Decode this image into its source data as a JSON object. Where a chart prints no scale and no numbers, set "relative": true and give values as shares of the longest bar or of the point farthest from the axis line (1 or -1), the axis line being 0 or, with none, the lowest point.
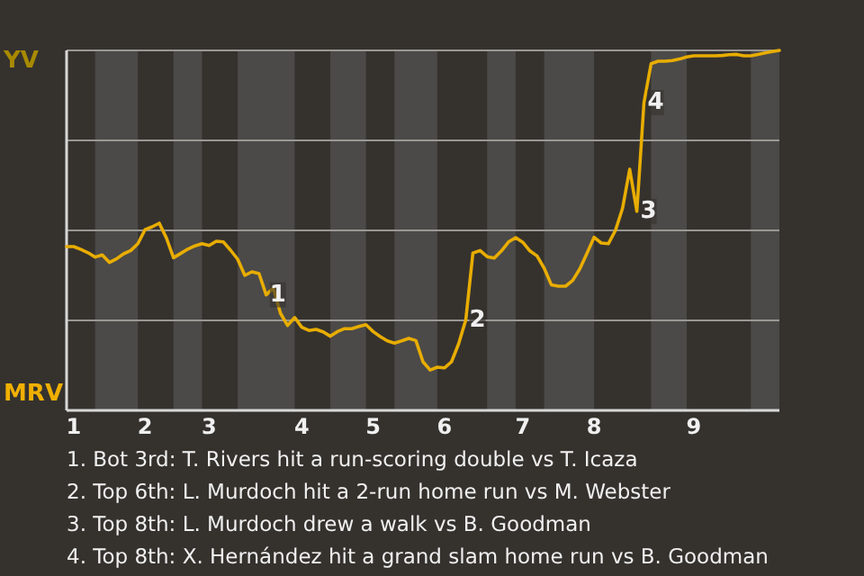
{
  "chart_data": {
    "type": "line",
    "categories": [
      null,
      "1",
      null,
      null,
      null,
      null,
      null,
      null,
      null,
      null,
      null,
      "2",
      null,
      null,
      null,
      null,
      null,
      null,
      null,
      null,
      "3",
      null,
      null,
      null,
      null,
      null,
      null,
      null,
      null,
      null,
      null,
      null,
      null,
      "4",
      null,
      null,
      null,
      null,
      null,
      null,
      null,
      null,
      null,
      "5",
      null,
      null,
      null,
      null,
      null,
      null,
      null,
      null,
      null,
      "6",
      null,
      null,
      null,
      null,
      null,
      null,
      null,
      null,
      null,
      null,
      "7",
      null,
      null,
      null,
      null,
      null,
      null,
      null,
      null,
      null,
      "8",
      null,
      null,
      null,
      null,
      null,
      null,
      null,
      null,
      null,
      null,
      null,
      null,
      null,
      "9",
      null,
      null,
      null,
      null,
      null,
      null,
      null,
      null,
      null,
      null,
      null,
      null
    ],
    "series": [
      {
        "color": "#e8ad00",
        "values": [
          0.455,
          0.455,
          0.447,
          0.438,
          0.426,
          0.432,
          0.411,
          0.421,
          0.435,
          0.444,
          0.463,
          0.502,
          0.51,
          0.52,
          0.479,
          0.424,
          0.436,
          0.448,
          0.457,
          0.463,
          0.458,
          0.47,
          0.468,
          0.445,
          0.42,
          0.375,
          0.385,
          0.38,
          0.321,
          0.34,
          0.27,
          0.236,
          0.258,
          0.231,
          0.222,
          0.225,
          0.218,
          0.206,
          0.219,
          0.227,
          0.227,
          0.233,
          0.238,
          0.219,
          0.205,
          0.193,
          0.187,
          0.193,
          0.2,
          0.194,
          0.135,
          0.112,
          0.12,
          0.118,
          0.135,
          0.185,
          0.251,
          0.437,
          0.444,
          0.427,
          0.423,
          0.443,
          0.468,
          0.48,
          0.467,
          0.443,
          0.429,
          0.395,
          0.349,
          0.345,
          0.345,
          0.361,
          0.393,
          0.436,
          0.481,
          0.465,
          0.463,
          0.5,
          0.562,
          0.67,
          0.553,
          0.855,
          0.963,
          0.97,
          0.97,
          0.972,
          0.976,
          0.982,
          0.985,
          0.985,
          0.985,
          0.985,
          0.986,
          0.988,
          0.989,
          0.985,
          0.985,
          0.989,
          0.993,
          0.997,
          1
        ]
      }
    ],
    "relative": true,
    "grid": "y",
    "annotations": [
      "YV",
      "MRV",
      {
        "text": "1",
        "y": 0.321
      },
      {
        "text": "2",
        "y": 0.251
      },
      {
        "text": "3",
        "y": 0.553
      },
      {
        "text": "4",
        "y": 0.855
      },
      "1. Bot 3rd: T. Rivers hit a run-scoring double vs T. Icaza",
      "2. Top 6th: L. Murdoch hit a 2-run home run vs M. Webster",
      "3. Top 8th: L. Murdoch drew a walk vs B. Goodman",
      "4. Top 8th: X. Hernández hit a grand slam home run vs B. Goodman"
    ]
  }
}
